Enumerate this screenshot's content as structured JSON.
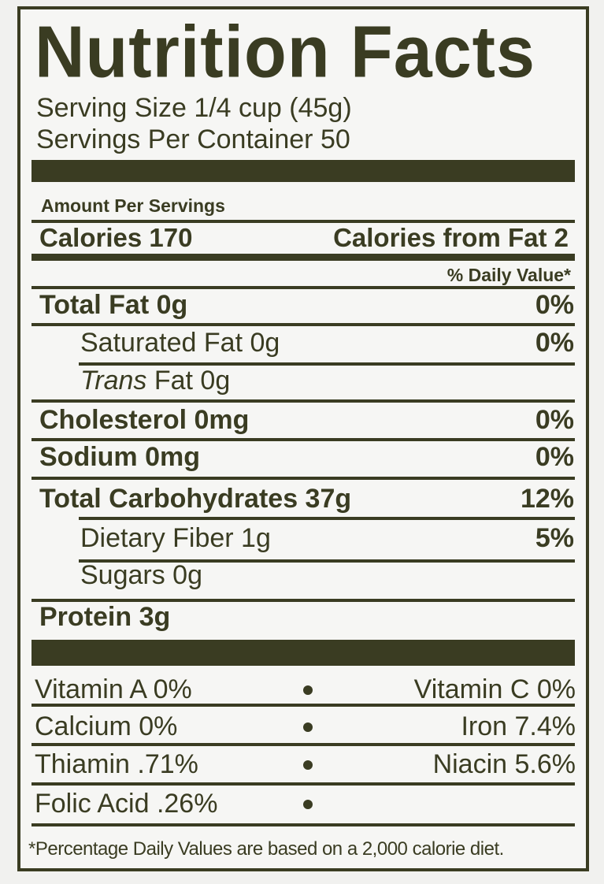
{
  "title": "Nutrition Facts",
  "serving_size": "Serving Size 1/4 cup (45g)",
  "servings_per_container": "Servings Per Container 50",
  "amount_per": "Amount Per Servings",
  "calories": "Calories 170",
  "calories_from_fat": "Calories from Fat 2",
  "daily_value_header": "% Daily Value*",
  "nutrients": [
    {
      "label": "Total Fat 0g",
      "dv": "0%"
    },
    {
      "label": "Saturated Fat 0g",
      "dv": "0%"
    },
    {
      "label_italic": "Trans",
      "label": "Fat 0g"
    },
    {
      "label": "Cholesterol 0mg",
      "dv": "0%"
    },
    {
      "label": "Sodium 0mg",
      "dv": "0%"
    },
    {
      "label": "Total Carbohydrates 37g",
      "dv": "12%"
    },
    {
      "label": "Dietary Fiber 1g",
      "dv": "5%"
    },
    {
      "label": "Sugars 0g"
    },
    {
      "label": "Protein 3g"
    }
  ],
  "vitamins": [
    {
      "left": "Vitamin A 0%",
      "right": "Vitamin C 0%"
    },
    {
      "left": "Calcium 0%",
      "right": "Iron 7.4%"
    },
    {
      "left": "Thiamin .71%",
      "right": "Niacin 5.6%"
    },
    {
      "left": "Folic Acid .26%"
    }
  ],
  "footnote": "*Percentage Daily Values are based on a 2,000 calorie diet."
}
